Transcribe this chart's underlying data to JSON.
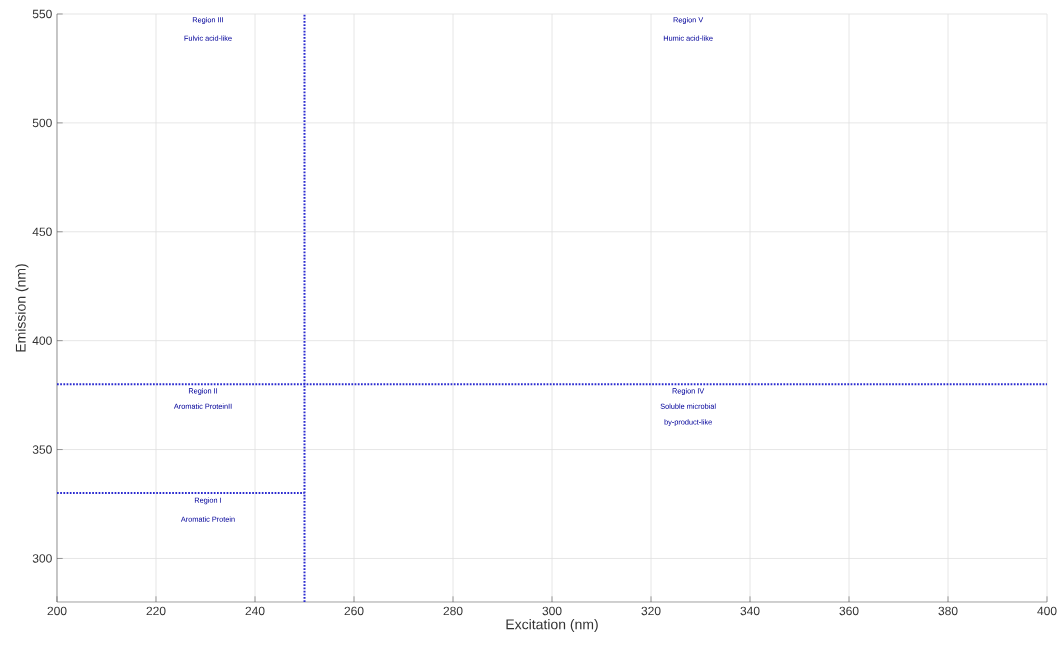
{
  "chart_data": {
    "type": "line",
    "xlabel": "Excitation (nm)",
    "ylabel": "Emission (nm)",
    "xlim": [
      200,
      400
    ],
    "ylim": [
      280,
      550
    ],
    "xticks": [
      200,
      220,
      240,
      260,
      280,
      300,
      320,
      340,
      360,
      380,
      400
    ],
    "yticks": [
      300,
      350,
      400,
      450,
      500,
      550
    ],
    "grid": true,
    "marker": "none",
    "line_style": "dotted",
    "series": [
      {
        "color": "#2a2ad0",
        "x": [
          250,
          250
        ],
        "values": [
          280,
          550
        ]
      },
      {
        "color": "#2a2ad0",
        "x": [
          200,
          400
        ],
        "values": [
          380,
          380
        ]
      },
      {
        "color": "#2a2ad0",
        "x": [
          200,
          250
        ],
        "values": [
          330,
          330
        ]
      }
    ],
    "annotations": [
      "Region III",
      "Fulvic acid-like",
      "Region V",
      "Humic acid-like",
      "Region II",
      "Aromatic ProteinII",
      "Region IV",
      "Soluble microbial",
      "by-product-like",
      "Region I",
      "Aromatic Protein"
    ]
  }
}
